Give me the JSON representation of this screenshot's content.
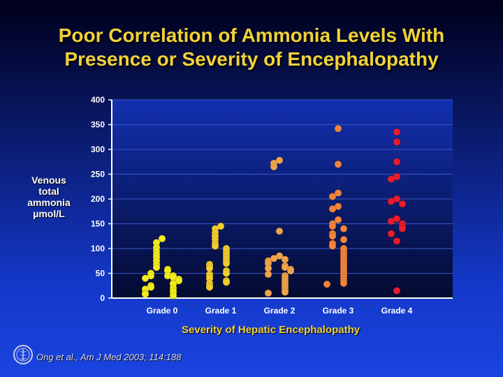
{
  "slide": {
    "title_line1": "Poor Correlation of Ammonia Levels With",
    "title_line2": "Presence or Severity of Encephalopathy",
    "ylabel_lines": [
      "Venous",
      "total",
      "ammonia",
      "µmol/L"
    ],
    "citation": "Ong et al., Am J Med 2003; 114:188",
    "logo_icon": "caduceus-seal-icon"
  },
  "chart_data": {
    "type": "scatter",
    "title": "Poor Correlation of Ammonia Levels With Presence or Severity of Encephalopathy",
    "xlabel": "Severity of Hepatic Encephalopathy",
    "ylabel": "Venous total ammonia µmol/L",
    "ylim": [
      0,
      400
    ],
    "yticks": [
      0,
      50,
      100,
      150,
      200,
      250,
      300,
      350,
      400
    ],
    "categories": [
      "Grade 0",
      "Grade 1",
      "Grade 2",
      "Grade 3",
      "Grade 4"
    ],
    "grid": true,
    "series": [
      {
        "name": "Grade 0",
        "color": "#f2ec1a",
        "values": [
          120,
          112,
          102,
          95,
          88,
          82,
          75,
          68,
          62,
          58,
          55,
          50,
          45,
          45,
          45,
          42,
          40,
          38,
          35,
          30,
          28,
          25,
          22,
          20,
          18,
          15,
          12,
          10,
          8,
          5
        ]
      },
      {
        "name": "Grade 1",
        "color": "#f2cc2c",
        "values": [
          145,
          140,
          132,
          125,
          118,
          110,
          105,
          100,
          95,
          90,
          85,
          80,
          75,
          70,
          68,
          65,
          60,
          55,
          50,
          48,
          45,
          40,
          35,
          32,
          30,
          25,
          22
        ]
      },
      {
        "name": "Grade 2",
        "color": "#f0a44a",
        "values": [
          278,
          272,
          265,
          135,
          85,
          80,
          78,
          75,
          70,
          65,
          62,
          60,
          58,
          55,
          48,
          45,
          40,
          35,
          30,
          25,
          20,
          15,
          12,
          10
        ]
      },
      {
        "name": "Grade 3",
        "color": "#f2843a",
        "values": [
          342,
          270,
          212,
          205,
          185,
          180,
          158,
          150,
          145,
          140,
          130,
          125,
          118,
          110,
          105,
          100,
          95,
          90,
          85,
          80,
          75,
          70,
          65,
          60,
          55,
          50,
          45,
          40,
          35,
          30,
          28
        ]
      },
      {
        "name": "Grade 4",
        "color": "#e81c2c",
        "values": [
          335,
          315,
          275,
          245,
          240,
          200,
          195,
          190,
          160,
          155,
          150,
          145,
          140,
          130,
          115,
          15
        ]
      }
    ]
  }
}
